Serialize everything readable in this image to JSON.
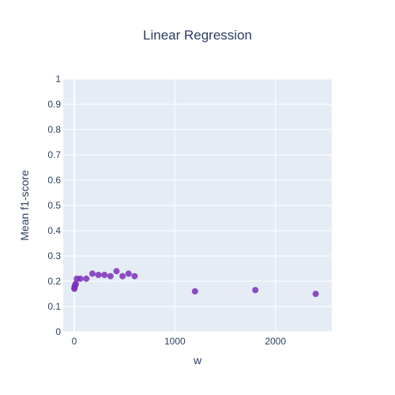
{
  "chart_data": {
    "type": "scatter",
    "title": "Linear Regression",
    "xlabel": "w",
    "ylabel": "Mean f1-score",
    "xlim": [
      -110,
      2560
    ],
    "ylim": [
      0,
      1
    ],
    "x_ticks": [
      0,
      1000,
      2000
    ],
    "y_ticks": [
      0,
      0.1,
      0.2,
      0.3,
      0.4,
      0.5,
      0.6,
      0.7,
      0.8,
      0.9,
      1
    ],
    "x_tick_labels": [
      "0",
      "1000",
      "2000"
    ],
    "y_tick_labels": [
      "0",
      "0.1",
      "0.2",
      "0.3",
      "0.4",
      "0.5",
      "0.6",
      "0.7",
      "0.8",
      "0.9",
      "1"
    ],
    "grid": true,
    "marker_color": "#7e2fbb",
    "plot_bg": "#e5ecf6",
    "points": [
      {
        "x": 1,
        "y": 0.17
      },
      {
        "x": 2,
        "y": 0.175
      },
      {
        "x": 5,
        "y": 0.18
      },
      {
        "x": 10,
        "y": 0.185
      },
      {
        "x": 15,
        "y": 0.19
      },
      {
        "x": 25,
        "y": 0.21
      },
      {
        "x": 60,
        "y": 0.21
      },
      {
        "x": 120,
        "y": 0.21
      },
      {
        "x": 180,
        "y": 0.23
      },
      {
        "x": 240,
        "y": 0.225
      },
      {
        "x": 300,
        "y": 0.225
      },
      {
        "x": 360,
        "y": 0.22
      },
      {
        "x": 420,
        "y": 0.24
      },
      {
        "x": 480,
        "y": 0.22
      },
      {
        "x": 540,
        "y": 0.23
      },
      {
        "x": 600,
        "y": 0.22
      },
      {
        "x": 1200,
        "y": 0.16
      },
      {
        "x": 1800,
        "y": 0.165
      },
      {
        "x": 2400,
        "y": 0.15
      }
    ]
  }
}
